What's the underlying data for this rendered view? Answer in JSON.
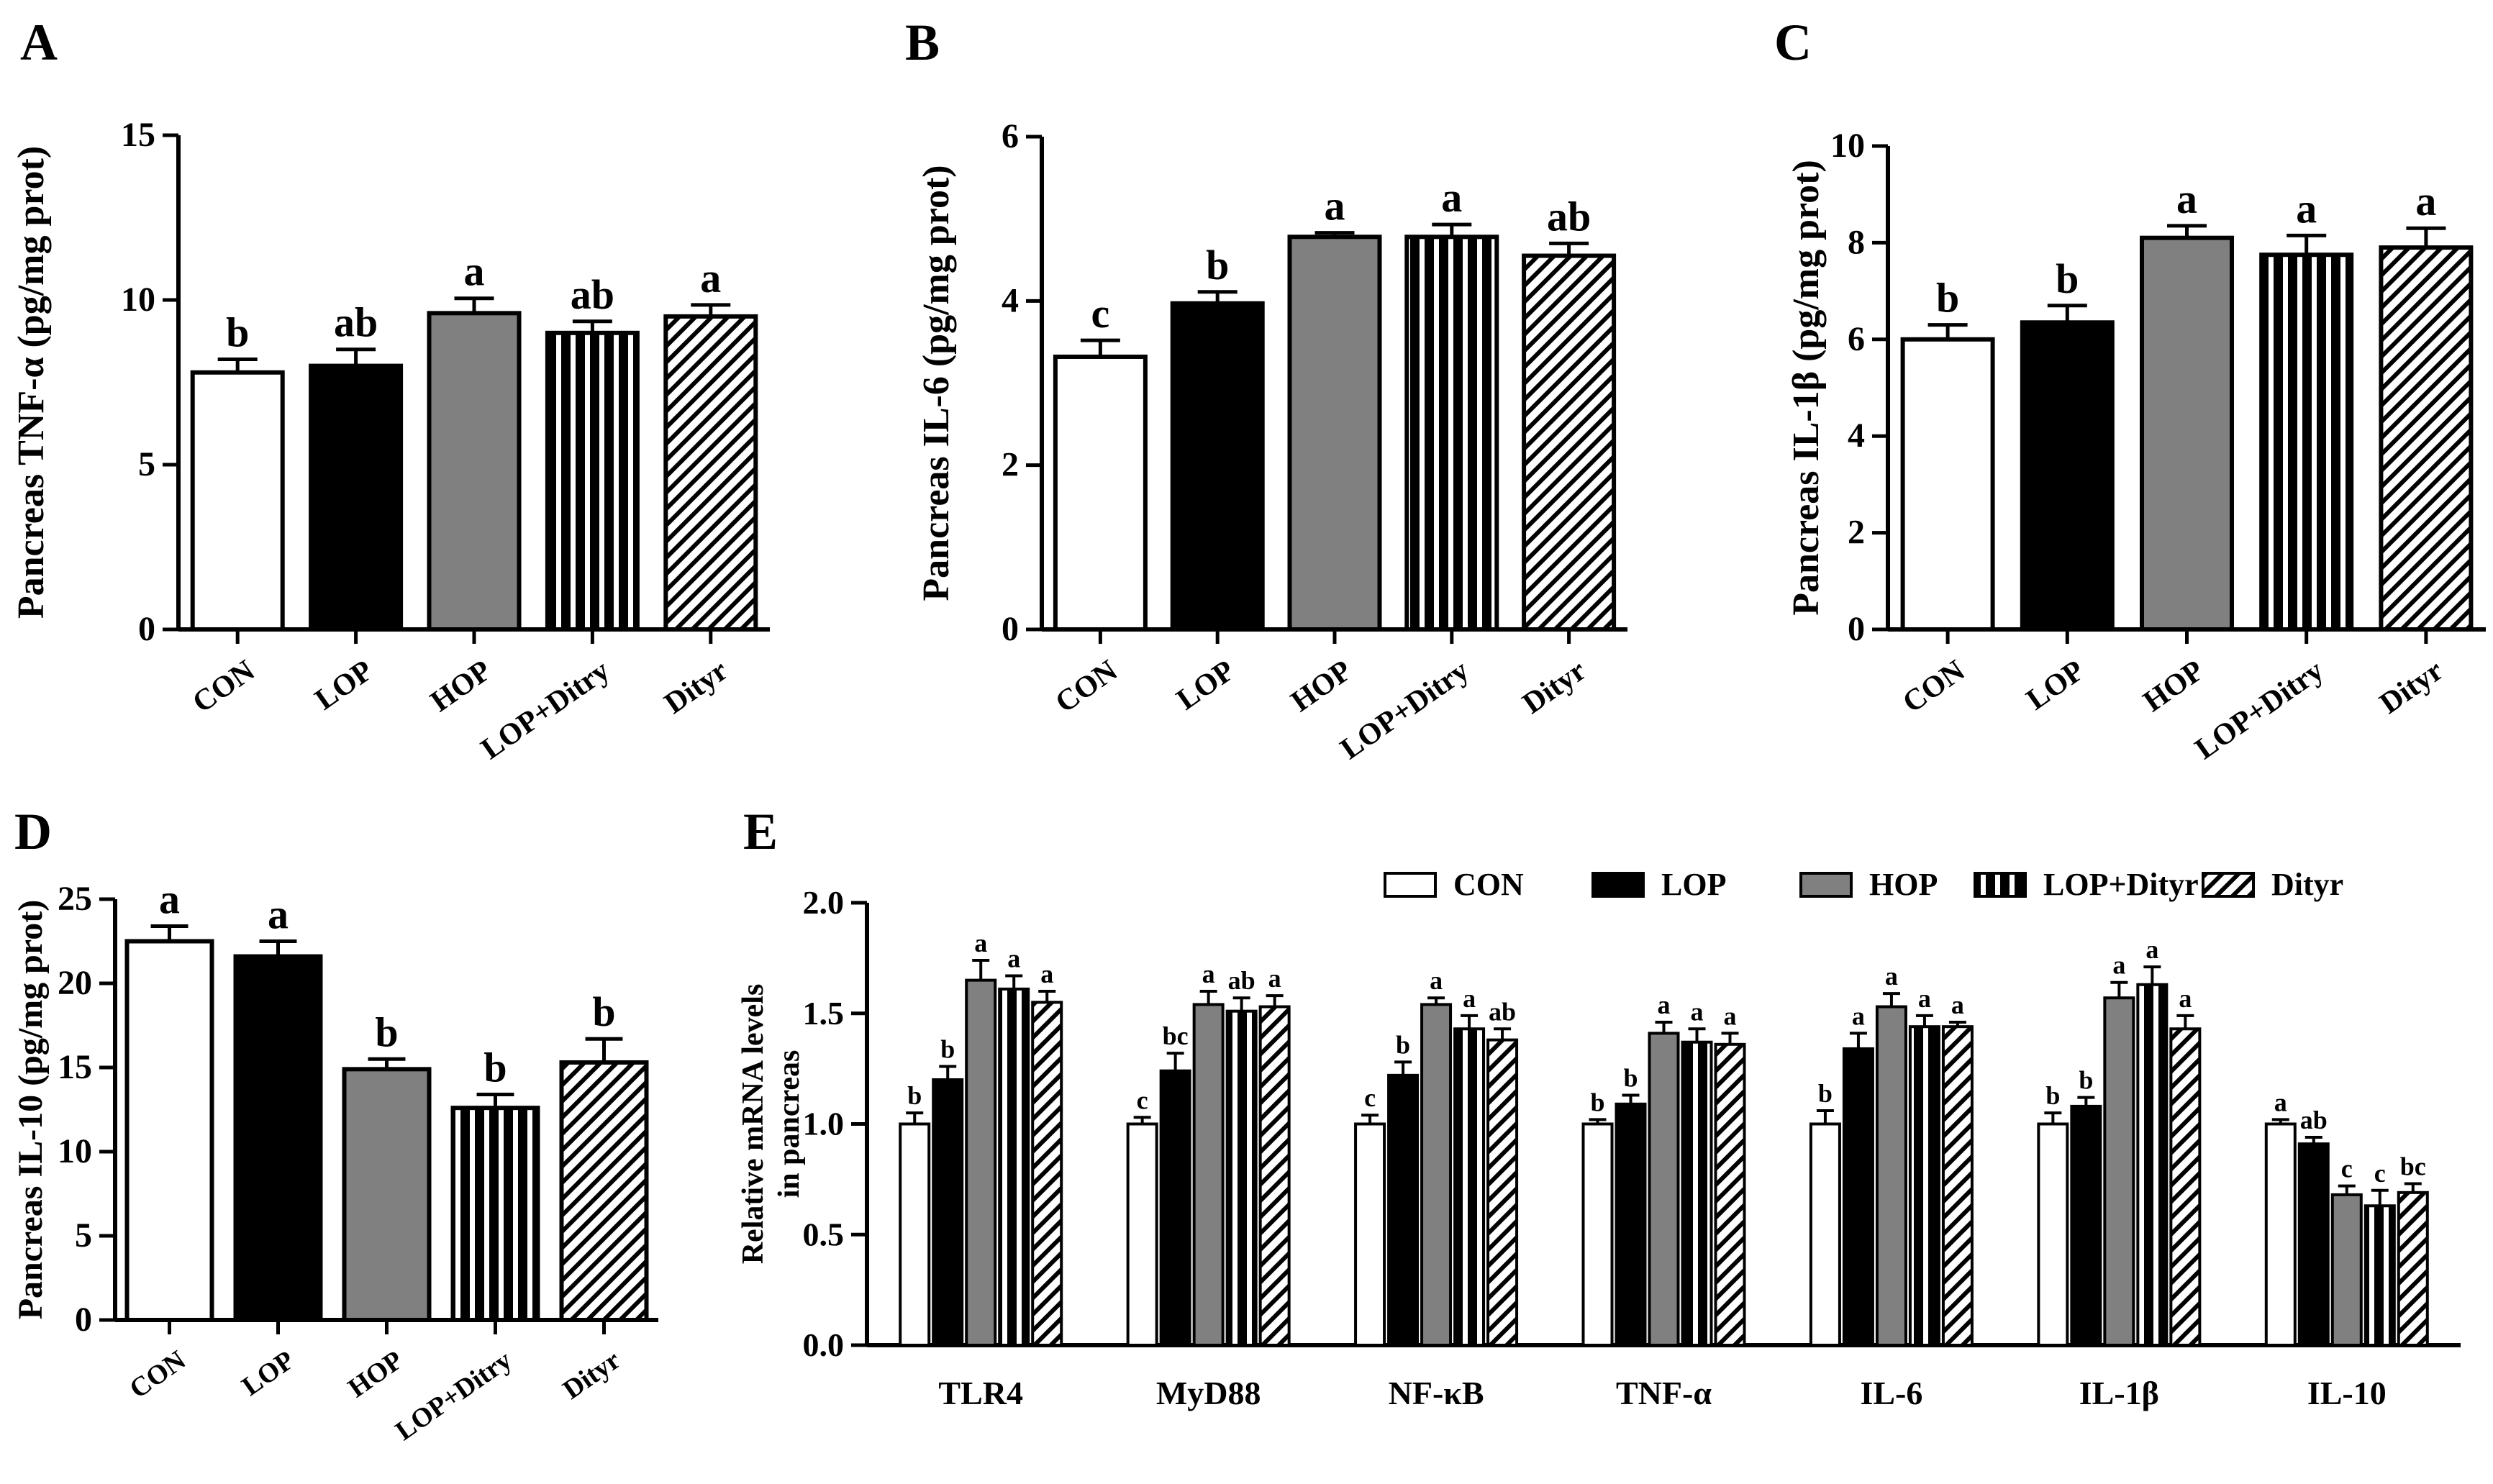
{
  "patterns": {
    "CON": "white",
    "LOP": "black",
    "HOP": "gray",
    "LOP+Dityr": "vertical-stripes",
    "Dityr": "diagonal-hatch"
  },
  "colors": {
    "gray": "#808080",
    "black": "#000000",
    "white": "#ffffff"
  },
  "chart_data": [
    {
      "panel": "A",
      "type": "bar",
      "ylabel": "Pancreas TNF-α (pg/mg prot)",
      "categories": [
        "CON",
        "LOP",
        "HOP",
        "LOP+Ditry",
        "Dityr"
      ],
      "values": [
        7.8,
        8.0,
        9.6,
        9.0,
        9.5
      ],
      "errors": [
        0.4,
        0.5,
        0.45,
        0.35,
        0.35
      ],
      "letters": [
        "b",
        "ab",
        "a",
        "ab",
        "a"
      ],
      "ylim": [
        0,
        15
      ],
      "yticks": [
        "0",
        "5",
        "10",
        "15"
      ]
    },
    {
      "panel": "B",
      "type": "bar",
      "ylabel": "Pancreas IL-6 (pg/mg prot)",
      "categories": [
        "CON",
        "LOP",
        "HOP",
        "LOP+Ditry",
        "Dityr"
      ],
      "values": [
        3.32,
        3.97,
        4.78,
        4.78,
        4.55
      ],
      "errors": [
        0.2,
        0.14,
        0.05,
        0.15,
        0.15
      ],
      "letters": [
        "c",
        "b",
        "a",
        "a",
        "ab"
      ],
      "ylim": [
        0,
        6
      ],
      "yticks": [
        "0",
        "2",
        "4",
        "6"
      ]
    },
    {
      "panel": "C",
      "type": "bar",
      "ylabel": "Pancreas IL-1β (pg/mg prot)",
      "categories": [
        "CON",
        "LOP",
        "HOP",
        "LOP+Ditry",
        "Dityr"
      ],
      "values": [
        6.0,
        6.35,
        8.1,
        7.75,
        7.9
      ],
      "errors": [
        0.3,
        0.35,
        0.25,
        0.4,
        0.4
      ],
      "letters": [
        "b",
        "b",
        "a",
        "a",
        "a"
      ],
      "ylim": [
        0,
        10
      ],
      "yticks": [
        "0",
        "2",
        "4",
        "6",
        "8",
        "10"
      ]
    },
    {
      "panel": "D",
      "type": "bar",
      "ylabel": "Pancreas IL-10 (pg/mg prot)",
      "categories": [
        "CON",
        "LOP",
        "HOP",
        "LOP+Ditry",
        "Dityr"
      ],
      "values": [
        22.5,
        21.6,
        14.9,
        12.6,
        15.3
      ],
      "errors": [
        0.9,
        0.9,
        0.6,
        0.8,
        1.4
      ],
      "letters": [
        "a",
        "a",
        "b",
        "b",
        "b"
      ],
      "ylim": [
        0,
        25
      ],
      "yticks": [
        "0",
        "5",
        "10",
        "15",
        "20",
        "25"
      ]
    },
    {
      "panel": "E",
      "type": "bar",
      "ylabel": "Relative mRNA levels in pancreas",
      "ylabel_lines": [
        "Relative mRNA levels",
        "in pancreas"
      ],
      "categories": [
        "TLR4",
        "MyD88",
        "NF-κB",
        "TNF-α",
        "IL-6",
        "IL-1β",
        "IL-10"
      ],
      "series": [
        {
          "name": "CON",
          "values": [
            1.0,
            1.0,
            1.0,
            1.0,
            1.0,
            1.0,
            1.0
          ],
          "errors": [
            0.05,
            0.03,
            0.04,
            0.02,
            0.06,
            0.05,
            0.02
          ],
          "letters": [
            "b",
            "c",
            "c",
            "b",
            "b",
            "b",
            "a"
          ]
        },
        {
          "name": "LOP",
          "values": [
            1.2,
            1.24,
            1.22,
            1.09,
            1.34,
            1.08,
            0.91
          ],
          "errors": [
            0.06,
            0.08,
            0.06,
            0.04,
            0.07,
            0.04,
            0.03
          ],
          "letters": [
            "b",
            "bc",
            "b",
            "b",
            "a",
            "b",
            "ab"
          ]
        },
        {
          "name": "HOP",
          "values": [
            1.65,
            1.54,
            1.54,
            1.41,
            1.53,
            1.57,
            0.68
          ],
          "errors": [
            0.09,
            0.06,
            0.03,
            0.05,
            0.06,
            0.07,
            0.04
          ],
          "letters": [
            "a",
            "a",
            "a",
            "a",
            "a",
            "a",
            "c"
          ]
        },
        {
          "name": "LOP+Dityr",
          "values": [
            1.61,
            1.51,
            1.43,
            1.37,
            1.44,
            1.63,
            0.63
          ],
          "errors": [
            0.06,
            0.06,
            0.06,
            0.06,
            0.05,
            0.08,
            0.07
          ],
          "letters": [
            "a",
            "ab",
            "a",
            "a",
            "a",
            "a",
            "c"
          ]
        },
        {
          "name": "Dityr",
          "values": [
            1.55,
            1.53,
            1.38,
            1.36,
            1.44,
            1.43,
            0.69
          ],
          "errors": [
            0.05,
            0.05,
            0.05,
            0.05,
            0.02,
            0.06,
            0.04
          ],
          "letters": [
            "a",
            "a",
            "ab",
            "a",
            "a",
            "a",
            "bc"
          ]
        }
      ],
      "ylim": [
        0,
        2
      ],
      "yticks": [
        "0.0",
        "0.5",
        "1.0",
        "1.5",
        "2.0"
      ],
      "legend_position": "top"
    }
  ]
}
